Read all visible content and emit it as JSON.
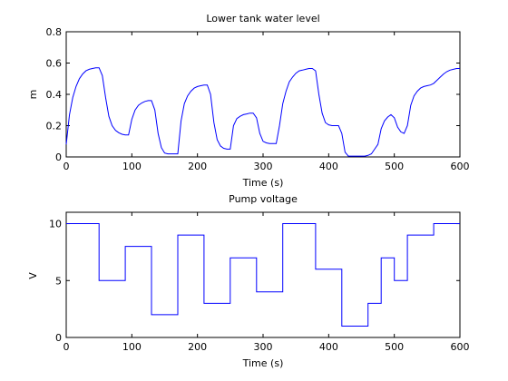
{
  "chart_data": [
    {
      "type": "line",
      "title": "Lower tank water level",
      "xlabel": "Time (s)",
      "ylabel": "m",
      "xlim": [
        0,
        600
      ],
      "ylim": [
        0,
        0.8
      ],
      "xticks": [
        0,
        100,
        200,
        300,
        400,
        500,
        600
      ],
      "yticks": [
        0,
        0.2,
        0.4,
        0.6,
        0.8
      ],
      "grid": false,
      "line_color": "#0000ff",
      "series": [
        {
          "x": [
            0,
            5,
            10,
            15,
            20,
            25,
            30,
            35,
            40,
            45,
            50,
            55,
            60,
            65,
            70,
            75,
            80,
            85,
            90,
            95,
            100,
            105,
            110,
            115,
            120,
            125,
            130,
            135,
            140,
            145,
            150,
            155,
            160,
            165,
            170,
            175,
            180,
            185,
            190,
            195,
            200,
            205,
            210,
            215,
            220,
            225,
            230,
            235,
            240,
            245,
            250,
            255,
            260,
            265,
            270,
            275,
            280,
            285,
            290,
            295,
            300,
            305,
            310,
            315,
            320,
            325,
            330,
            335,
            340,
            345,
            350,
            355,
            360,
            365,
            370,
            375,
            380,
            385,
            390,
            395,
            400,
            405,
            410,
            415,
            420,
            425,
            430,
            435,
            440,
            445,
            450,
            455,
            460,
            465,
            470,
            475,
            480,
            485,
            490,
            495,
            500,
            505,
            510,
            515,
            520,
            525,
            530,
            535,
            540,
            545,
            550,
            555,
            560,
            565,
            570,
            575,
            580,
            585,
            590,
            595,
            600
          ],
          "y": [
            0.08,
            0.27,
            0.38,
            0.45,
            0.5,
            0.53,
            0.55,
            0.56,
            0.565,
            0.57,
            0.57,
            0.52,
            0.38,
            0.26,
            0.2,
            0.17,
            0.155,
            0.145,
            0.14,
            0.14,
            0.24,
            0.3,
            0.33,
            0.345,
            0.355,
            0.36,
            0.36,
            0.3,
            0.15,
            0.06,
            0.025,
            0.02,
            0.02,
            0.02,
            0.02,
            0.23,
            0.34,
            0.39,
            0.42,
            0.44,
            0.45,
            0.455,
            0.46,
            0.46,
            0.4,
            0.22,
            0.11,
            0.07,
            0.055,
            0.05,
            0.05,
            0.2,
            0.245,
            0.26,
            0.27,
            0.275,
            0.28,
            0.28,
            0.25,
            0.15,
            0.1,
            0.09,
            0.085,
            0.085,
            0.085,
            0.2,
            0.34,
            0.42,
            0.48,
            0.51,
            0.535,
            0.55,
            0.555,
            0.56,
            0.565,
            0.565,
            0.55,
            0.4,
            0.28,
            0.22,
            0.205,
            0.2,
            0.2,
            0.2,
            0.15,
            0.03,
            0.005,
            0.005,
            0.005,
            0.005,
            0.005,
            0.005,
            0.01,
            0.02,
            0.05,
            0.08,
            0.18,
            0.23,
            0.255,
            0.27,
            0.25,
            0.19,
            0.16,
            0.15,
            0.2,
            0.33,
            0.39,
            0.42,
            0.44,
            0.45,
            0.455,
            0.46,
            0.47,
            0.49,
            0.51,
            0.53,
            0.545,
            0.555,
            0.56,
            0.565,
            0.565
          ]
        }
      ]
    },
    {
      "type": "line",
      "title": "Pump voltage",
      "xlabel": "Time (s)",
      "ylabel": "V",
      "xlim": [
        0,
        600
      ],
      "ylim": [
        0,
        11
      ],
      "xticks": [
        0,
        100,
        200,
        300,
        400,
        500,
        600
      ],
      "yticks": [
        0,
        5,
        10
      ],
      "grid": false,
      "line_color": "#0000ff",
      "step": true,
      "series": [
        {
          "x": [
            0,
            50,
            90,
            130,
            170,
            210,
            250,
            290,
            330,
            380,
            420,
            460,
            480,
            500,
            520,
            560,
            600
          ],
          "y": [
            10,
            5,
            8,
            2,
            9,
            3,
            7,
            4,
            10,
            6,
            1,
            3,
            7,
            5,
            9,
            10,
            10
          ]
        }
      ]
    }
  ]
}
